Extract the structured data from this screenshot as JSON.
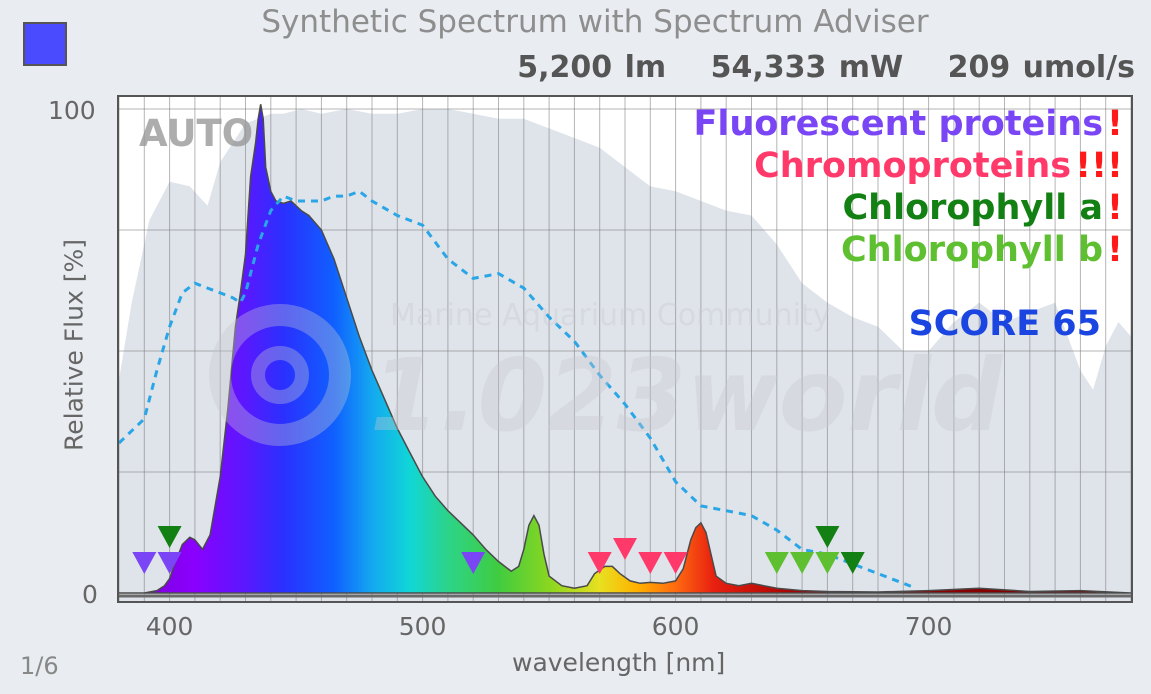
{
  "header": {
    "title": "Synthetic Spectrum with Spectrum Adviser",
    "swatch_color": "#4a4aff",
    "stats": [
      "5,200 lm",
      "54,333 mW",
      "209 umol/s"
    ]
  },
  "overlay": {
    "auto_label": "AUTO",
    "watermark_line1": "Marine Aquarium Community",
    "watermark_line2": "1.023world",
    "advisories": [
      {
        "label": "Fluorescent proteins",
        "marks": "!",
        "color": "#7a46f5"
      },
      {
        "label": "Chromoproteins",
        "marks": "!!!",
        "color": "#ff3a6a"
      },
      {
        "label": "Chlorophyll a",
        "marks": "!",
        "color": "#138013"
      },
      {
        "label": "Chlorophyll b",
        "marks": "!",
        "color": "#5ec030"
      }
    ],
    "score_label": "SCORE 65"
  },
  "footer": {
    "page_indicator": "1/6"
  },
  "chart_data": {
    "type": "area",
    "xlabel": "wavelength [nm]",
    "ylabel": "Relative Flux [%]",
    "xlim": [
      380,
      780
    ],
    "ylim": [
      0,
      100
    ],
    "x_ticks": [
      400,
      500,
      600,
      700
    ],
    "y_ticks": [
      0,
      100
    ],
    "grid": true,
    "series": [
      {
        "style": "filled-spectrum",
        "x": [
          380,
          385,
          390,
          395,
          398,
          400,
          402,
          405,
          408,
          410,
          413,
          416,
          420,
          423,
          426,
          428,
          430,
          432,
          434,
          435,
          436,
          437,
          438,
          440,
          442,
          445,
          448,
          450,
          452,
          455,
          460,
          465,
          470,
          475,
          480,
          485,
          490,
          495,
          500,
          505,
          510,
          515,
          520,
          525,
          530,
          535,
          538,
          540,
          542,
          544,
          546,
          548,
          550,
          555,
          560,
          565,
          568,
          572,
          575,
          578,
          582,
          586,
          590,
          595,
          600,
          603,
          606,
          608,
          610,
          612,
          614,
          616,
          620,
          625,
          630,
          640,
          650,
          660,
          680,
          700,
          720,
          740,
          760,
          780
        ],
        "y": [
          0,
          0,
          0,
          0.5,
          1.5,
          3,
          6,
          10,
          11.5,
          11,
          9,
          12,
          24,
          38,
          55,
          62,
          70,
          86,
          93,
          98,
          101,
          98,
          88,
          83,
          81,
          80.5,
          81,
          80,
          79,
          78,
          75,
          69,
          61,
          53,
          46,
          40,
          34,
          29,
          24,
          20,
          17,
          14.5,
          12,
          9,
          6.5,
          4.5,
          5.5,
          9,
          14,
          16,
          14,
          8,
          3.5,
          1.5,
          1,
          1.5,
          4,
          5.5,
          5.5,
          4,
          2.5,
          2,
          2.2,
          2,
          2.5,
          5,
          11,
          13.5,
          14.5,
          12.5,
          8,
          3.5,
          2,
          1.5,
          2,
          1,
          0.5,
          0.3,
          0.2,
          0.5,
          1,
          0.3,
          0.5,
          0
        ]
      },
      {
        "style": "dashed",
        "x": [
          380,
          390,
          395,
          400,
          405,
          410,
          415,
          420,
          425,
          428,
          430,
          435,
          440,
          445,
          450,
          455,
          460,
          465,
          470,
          475,
          480,
          490,
          500,
          510,
          520,
          530,
          540,
          550,
          560,
          570,
          580,
          590,
          600,
          610,
          620,
          630,
          640,
          650,
          660,
          670,
          680,
          690,
          695
        ],
        "y": [
          31,
          36,
          46,
          55,
          62,
          64,
          63,
          62,
          61,
          60,
          62,
          72,
          79,
          82,
          81,
          81,
          81,
          82,
          82,
          83,
          81,
          78,
          76,
          69,
          65,
          66,
          63,
          57,
          52,
          45,
          39,
          32,
          23,
          18,
          17,
          16,
          13,
          9,
          8,
          6,
          4,
          2,
          1
        ]
      },
      {
        "style": "background",
        "x": [
          380,
          385,
          392,
          400,
          408,
          415,
          420,
          430,
          440,
          445,
          452,
          460,
          470,
          480,
          490,
          500,
          510,
          520,
          530,
          540,
          550,
          560,
          570,
          580,
          590,
          600,
          610,
          620,
          630,
          640,
          650,
          660,
          670,
          680,
          690,
          700,
          710,
          720,
          730,
          740,
          750,
          760,
          765,
          770,
          775,
          780
        ],
        "y": [
          44,
          60,
          77,
          85,
          84,
          80,
          89,
          97,
          99,
          99,
          100,
          99,
          100,
          99,
          99,
          100,
          100,
          99,
          98,
          98,
          96,
          94,
          92,
          88,
          84,
          83,
          81,
          79,
          78,
          72,
          64,
          60,
          57,
          55,
          50,
          50,
          56,
          60,
          56,
          58,
          60,
          46,
          42,
          51,
          56,
          53
        ]
      }
    ],
    "markers": [
      {
        "x": 390,
        "color": "#7a46f5"
      },
      {
        "x": 400,
        "color": "#7a46f5"
      },
      {
        "x": 400,
        "color": "#138013"
      },
      {
        "x": 520,
        "color": "#7a46f5"
      },
      {
        "x": 570,
        "color": "#ff3a6a"
      },
      {
        "x": 580,
        "color": "#ff3a6a"
      },
      {
        "x": 590,
        "color": "#ff3a6a"
      },
      {
        "x": 600,
        "color": "#ff3a6a"
      },
      {
        "x": 640,
        "color": "#5ec030"
      },
      {
        "x": 650,
        "color": "#5ec030"
      },
      {
        "x": 660,
        "color": "#5ec030"
      },
      {
        "x": 660,
        "color": "#138013"
      },
      {
        "x": 670,
        "color": "#138013"
      }
    ]
  }
}
